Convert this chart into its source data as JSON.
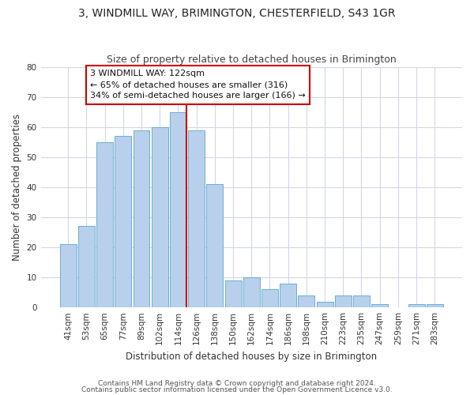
{
  "title": "3, WINDMILL WAY, BRIMINGTON, CHESTERFIELD, S43 1GR",
  "subtitle": "Size of property relative to detached houses in Brimington",
  "xlabel": "Distribution of detached houses by size in Brimington",
  "ylabel": "Number of detached properties",
  "bar_labels": [
    "41sqm",
    "53sqm",
    "65sqm",
    "77sqm",
    "89sqm",
    "102sqm",
    "114sqm",
    "126sqm",
    "138sqm",
    "150sqm",
    "162sqm",
    "174sqm",
    "186sqm",
    "198sqm",
    "210sqm",
    "223sqm",
    "235sqm",
    "247sqm",
    "259sqm",
    "271sqm",
    "283sqm"
  ],
  "bar_heights": [
    21,
    27,
    55,
    57,
    59,
    60,
    65,
    59,
    41,
    9,
    10,
    6,
    8,
    4,
    2,
    4,
    4,
    1,
    0,
    1,
    1
  ],
  "bar_color": "#b8d0eb",
  "bar_edge_color": "#6baed6",
  "vline_x_index": 6,
  "vline_color": "#cc0000",
  "annotation_title": "3 WINDMILL WAY: 122sqm",
  "annotation_line1": "← 65% of detached houses are smaller (316)",
  "annotation_line2": "34% of semi-detached houses are larger (166) →",
  "annotation_box_color": "#ffffff",
  "annotation_box_edge": "#cc0000",
  "ylim": [
    0,
    80
  ],
  "yticks": [
    0,
    10,
    20,
    30,
    40,
    50,
    60,
    70,
    80
  ],
  "footnote1": "Contains HM Land Registry data © Crown copyright and database right 2024.",
  "footnote2": "Contains public sector information licensed under the Open Government Licence v3.0.",
  "background_color": "#ffffff",
  "grid_color": "#d0d8e8",
  "title_fontsize": 10,
  "subtitle_fontsize": 9,
  "axis_label_fontsize": 8.5,
  "tick_fontsize": 7.5,
  "annotation_fontsize": 8,
  "footnote_fontsize": 6.5
}
